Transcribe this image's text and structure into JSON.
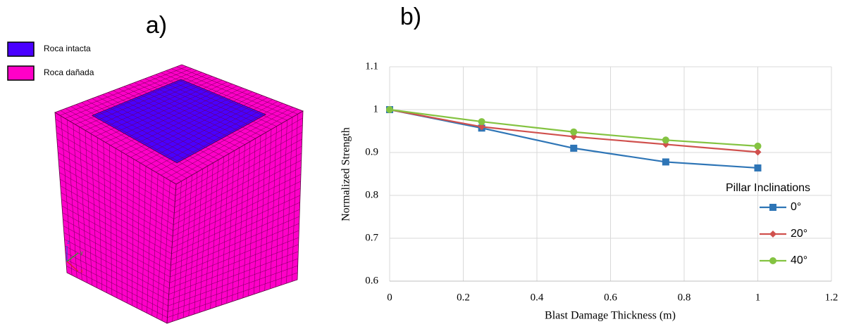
{
  "figure_a": {
    "label": "a)",
    "legend": [
      {
        "name": "Roca intacta",
        "color": "#4a00ff"
      },
      {
        "name": "Roca dañada",
        "color": "#ff00c8"
      }
    ],
    "axes": [
      "z",
      "y",
      "x"
    ]
  },
  "chart_data": {
    "type": "line",
    "label": "b)",
    "x_label": "Blast Damage Thickness (m)",
    "y_label": "Normalized Strength",
    "x": [
      0,
      0.25,
      0.5,
      0.75,
      1
    ],
    "series": [
      {
        "name": "0°",
        "color": "#2e75b6",
        "marker": "square",
        "values": [
          1,
          0.957,
          0.91,
          0.878,
          0.864
        ]
      },
      {
        "name": "20°",
        "color": "#d0504d",
        "marker": "diamond",
        "values": [
          1,
          0.96,
          0.937,
          0.919,
          0.901
        ]
      },
      {
        "name": "40°",
        "color": "#84c341",
        "marker": "circle",
        "values": [
          1,
          0.972,
          0.948,
          0.929,
          0.915
        ]
      }
    ],
    "legend_title": "Pillar Inclinations",
    "xlim": [
      0,
      1.2
    ],
    "xticks": [
      0,
      0.2,
      0.4,
      0.6,
      0.8,
      1,
      1.2
    ],
    "ylim": [
      0.6,
      1.1
    ],
    "yticks": [
      0.6,
      0.7,
      0.8,
      0.9,
      1,
      1.1
    ],
    "grid": true
  }
}
